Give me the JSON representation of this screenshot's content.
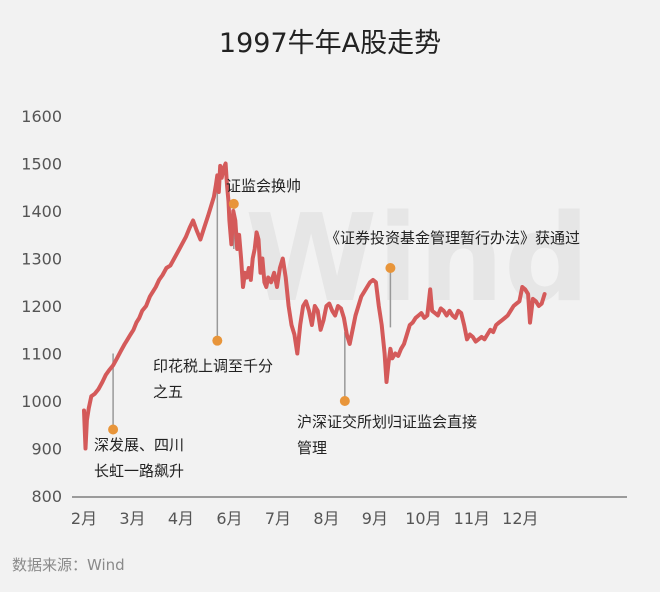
{
  "chart_data": {
    "type": "line",
    "title": "1997牛年A股走势",
    "source": "数据来源：Wind",
    "watermark": "Wind",
    "ylim": [
      800,
      1600
    ],
    "yticks": [
      800,
      900,
      1000,
      1100,
      1200,
      1300,
      1400,
      1500,
      1600
    ],
    "xlim": [
      0,
      11.2
    ],
    "xticks": [
      {
        "label": "2月",
        "x": 0
      },
      {
        "label": "3月",
        "x": 1
      },
      {
        "label": "4月",
        "x": 2
      },
      {
        "label": "6月",
        "x": 3
      },
      {
        "label": "7月",
        "x": 4
      },
      {
        "label": "8月",
        "x": 5
      },
      {
        "label": "9月",
        "x": 6
      },
      {
        "label": "10月",
        "x": 7
      },
      {
        "label": "11月",
        "x": 8
      },
      {
        "label": "12月",
        "x": 9
      }
    ],
    "grid": false,
    "line_color": "#d45a5a",
    "marker_color": "#e8953a",
    "series": [
      {
        "points": [
          [
            0.0,
            980
          ],
          [
            0.03,
            900
          ],
          [
            0.06,
            960
          ],
          [
            0.1,
            985
          ],
          [
            0.15,
            1010
          ],
          [
            0.22,
            1015
          ],
          [
            0.3,
            1025
          ],
          [
            0.38,
            1040
          ],
          [
            0.45,
            1055
          ],
          [
            0.52,
            1065
          ],
          [
            0.6,
            1075
          ],
          [
            0.68,
            1090
          ],
          [
            0.76,
            1105
          ],
          [
            0.84,
            1120
          ],
          [
            0.9,
            1130
          ],
          [
            0.96,
            1140
          ],
          [
            1.02,
            1150
          ],
          [
            1.08,
            1165
          ],
          [
            1.14,
            1175
          ],
          [
            1.2,
            1190
          ],
          [
            1.28,
            1200
          ],
          [
            1.36,
            1220
          ],
          [
            1.42,
            1230
          ],
          [
            1.48,
            1240
          ],
          [
            1.55,
            1255
          ],
          [
            1.62,
            1265
          ],
          [
            1.7,
            1280
          ],
          [
            1.78,
            1285
          ],
          [
            1.86,
            1300
          ],
          [
            1.94,
            1315
          ],
          [
            2.02,
            1330
          ],
          [
            2.1,
            1345
          ],
          [
            2.18,
            1365
          ],
          [
            2.25,
            1380
          ],
          [
            2.32,
            1360
          ],
          [
            2.4,
            1340
          ],
          [
            2.48,
            1365
          ],
          [
            2.56,
            1390
          ],
          [
            2.62,
            1410
          ],
          [
            2.68,
            1430
          ],
          [
            2.72,
            1455
          ],
          [
            2.75,
            1475
          ],
          [
            2.78,
            1440
          ],
          [
            2.81,
            1495
          ],
          [
            2.84,
            1470
          ],
          [
            2.88,
            1490
          ],
          [
            2.92,
            1500
          ],
          [
            2.95,
            1455
          ],
          [
            2.98,
            1420
          ],
          [
            3.0,
            1380
          ],
          [
            3.04,
            1330
          ],
          [
            3.08,
            1400
          ],
          [
            3.12,
            1380
          ],
          [
            3.16,
            1320
          ],
          [
            3.2,
            1350
          ],
          [
            3.24,
            1300
          ],
          [
            3.28,
            1240
          ],
          [
            3.32,
            1270
          ],
          [
            3.36,
            1260
          ],
          [
            3.4,
            1280
          ],
          [
            3.44,
            1255
          ],
          [
            3.48,
            1300
          ],
          [
            3.52,
            1320
          ],
          [
            3.56,
            1355
          ],
          [
            3.6,
            1340
          ],
          [
            3.64,
            1270
          ],
          [
            3.68,
            1300
          ],
          [
            3.72,
            1250
          ],
          [
            3.76,
            1240
          ],
          [
            3.8,
            1260
          ],
          [
            3.86,
            1250
          ],
          [
            3.92,
            1270
          ],
          [
            3.98,
            1240
          ],
          [
            4.04,
            1280
          ],
          [
            4.1,
            1300
          ],
          [
            4.16,
            1260
          ],
          [
            4.22,
            1200
          ],
          [
            4.28,
            1160
          ],
          [
            4.34,
            1140
          ],
          [
            4.4,
            1100
          ],
          [
            4.46,
            1160
          ],
          [
            4.52,
            1200
          ],
          [
            4.58,
            1210
          ],
          [
            4.64,
            1190
          ],
          [
            4.7,
            1160
          ],
          [
            4.76,
            1200
          ],
          [
            4.82,
            1190
          ],
          [
            4.88,
            1150
          ],
          [
            4.94,
            1170
          ],
          [
            5.0,
            1200
          ],
          [
            5.06,
            1205
          ],
          [
            5.12,
            1190
          ],
          [
            5.18,
            1180
          ],
          [
            5.24,
            1200
          ],
          [
            5.3,
            1195
          ],
          [
            5.36,
            1175
          ],
          [
            5.42,
            1140
          ],
          [
            5.48,
            1120
          ],
          [
            5.54,
            1150
          ],
          [
            5.6,
            1180
          ],
          [
            5.66,
            1200
          ],
          [
            5.72,
            1220
          ],
          [
            5.78,
            1230
          ],
          [
            5.84,
            1240
          ],
          [
            5.9,
            1250
          ],
          [
            5.96,
            1255
          ],
          [
            6.02,
            1250
          ],
          [
            6.08,
            1200
          ],
          [
            6.14,
            1160
          ],
          [
            6.2,
            1100
          ],
          [
            6.24,
            1040
          ],
          [
            6.28,
            1080
          ],
          [
            6.32,
            1110
          ],
          [
            6.36,
            1090
          ],
          [
            6.42,
            1100
          ],
          [
            6.48,
            1095
          ],
          [
            6.54,
            1110
          ],
          [
            6.6,
            1120
          ],
          [
            6.66,
            1140
          ],
          [
            6.72,
            1160
          ],
          [
            6.78,
            1165
          ],
          [
            6.84,
            1175
          ],
          [
            6.9,
            1180
          ],
          [
            6.96,
            1185
          ],
          [
            7.02,
            1175
          ],
          [
            7.08,
            1180
          ],
          [
            7.14,
            1235
          ],
          [
            7.18,
            1190
          ],
          [
            7.24,
            1185
          ],
          [
            7.3,
            1180
          ],
          [
            7.36,
            1195
          ],
          [
            7.42,
            1190
          ],
          [
            7.48,
            1180
          ],
          [
            7.54,
            1190
          ],
          [
            7.6,
            1180
          ],
          [
            7.66,
            1175
          ],
          [
            7.72,
            1190
          ],
          [
            7.78,
            1185
          ],
          [
            7.84,
            1160
          ],
          [
            7.9,
            1130
          ],
          [
            7.96,
            1140
          ],
          [
            8.02,
            1135
          ],
          [
            8.08,
            1125
          ],
          [
            8.14,
            1130
          ],
          [
            8.2,
            1135
          ],
          [
            8.26,
            1130
          ],
          [
            8.32,
            1140
          ],
          [
            8.38,
            1150
          ],
          [
            8.44,
            1145
          ],
          [
            8.5,
            1160
          ],
          [
            8.56,
            1165
          ],
          [
            8.62,
            1170
          ],
          [
            8.68,
            1175
          ],
          [
            8.74,
            1180
          ],
          [
            8.8,
            1190
          ],
          [
            8.86,
            1200
          ],
          [
            8.92,
            1205
          ],
          [
            8.98,
            1210
          ],
          [
            9.04,
            1240
          ],
          [
            9.1,
            1235
          ],
          [
            9.16,
            1225
          ],
          [
            9.2,
            1165
          ],
          [
            9.26,
            1215
          ],
          [
            9.32,
            1210
          ],
          [
            9.38,
            1200
          ],
          [
            9.44,
            1205
          ],
          [
            9.5,
            1225
          ]
        ]
      }
    ],
    "annotations": [
      {
        "lines": [
          "深发展、四川",
          "长虹一路飙升"
        ],
        "x": 0.6,
        "y": 940,
        "line_from_y": 1100
      },
      {
        "lines": [
          "印花税上调至千分",
          "之五"
        ],
        "x": 2.75,
        "y": 1127,
        "line_from_y": 1450
      },
      {
        "lines": [
          "证监会换帅"
        ],
        "x": 3.09,
        "y": 1415,
        "line_from_y": 1320
      },
      {
        "lines": [
          "《证券投资基金管理暂行办法》获通过"
        ],
        "x": 6.32,
        "y": 1280,
        "line_from_y": 1155
      },
      {
        "lines": [
          "沪深证交所划归证监会直接",
          "管理"
        ],
        "x": 5.38,
        "y": 1000,
        "line_from_y": 1145
      }
    ]
  }
}
